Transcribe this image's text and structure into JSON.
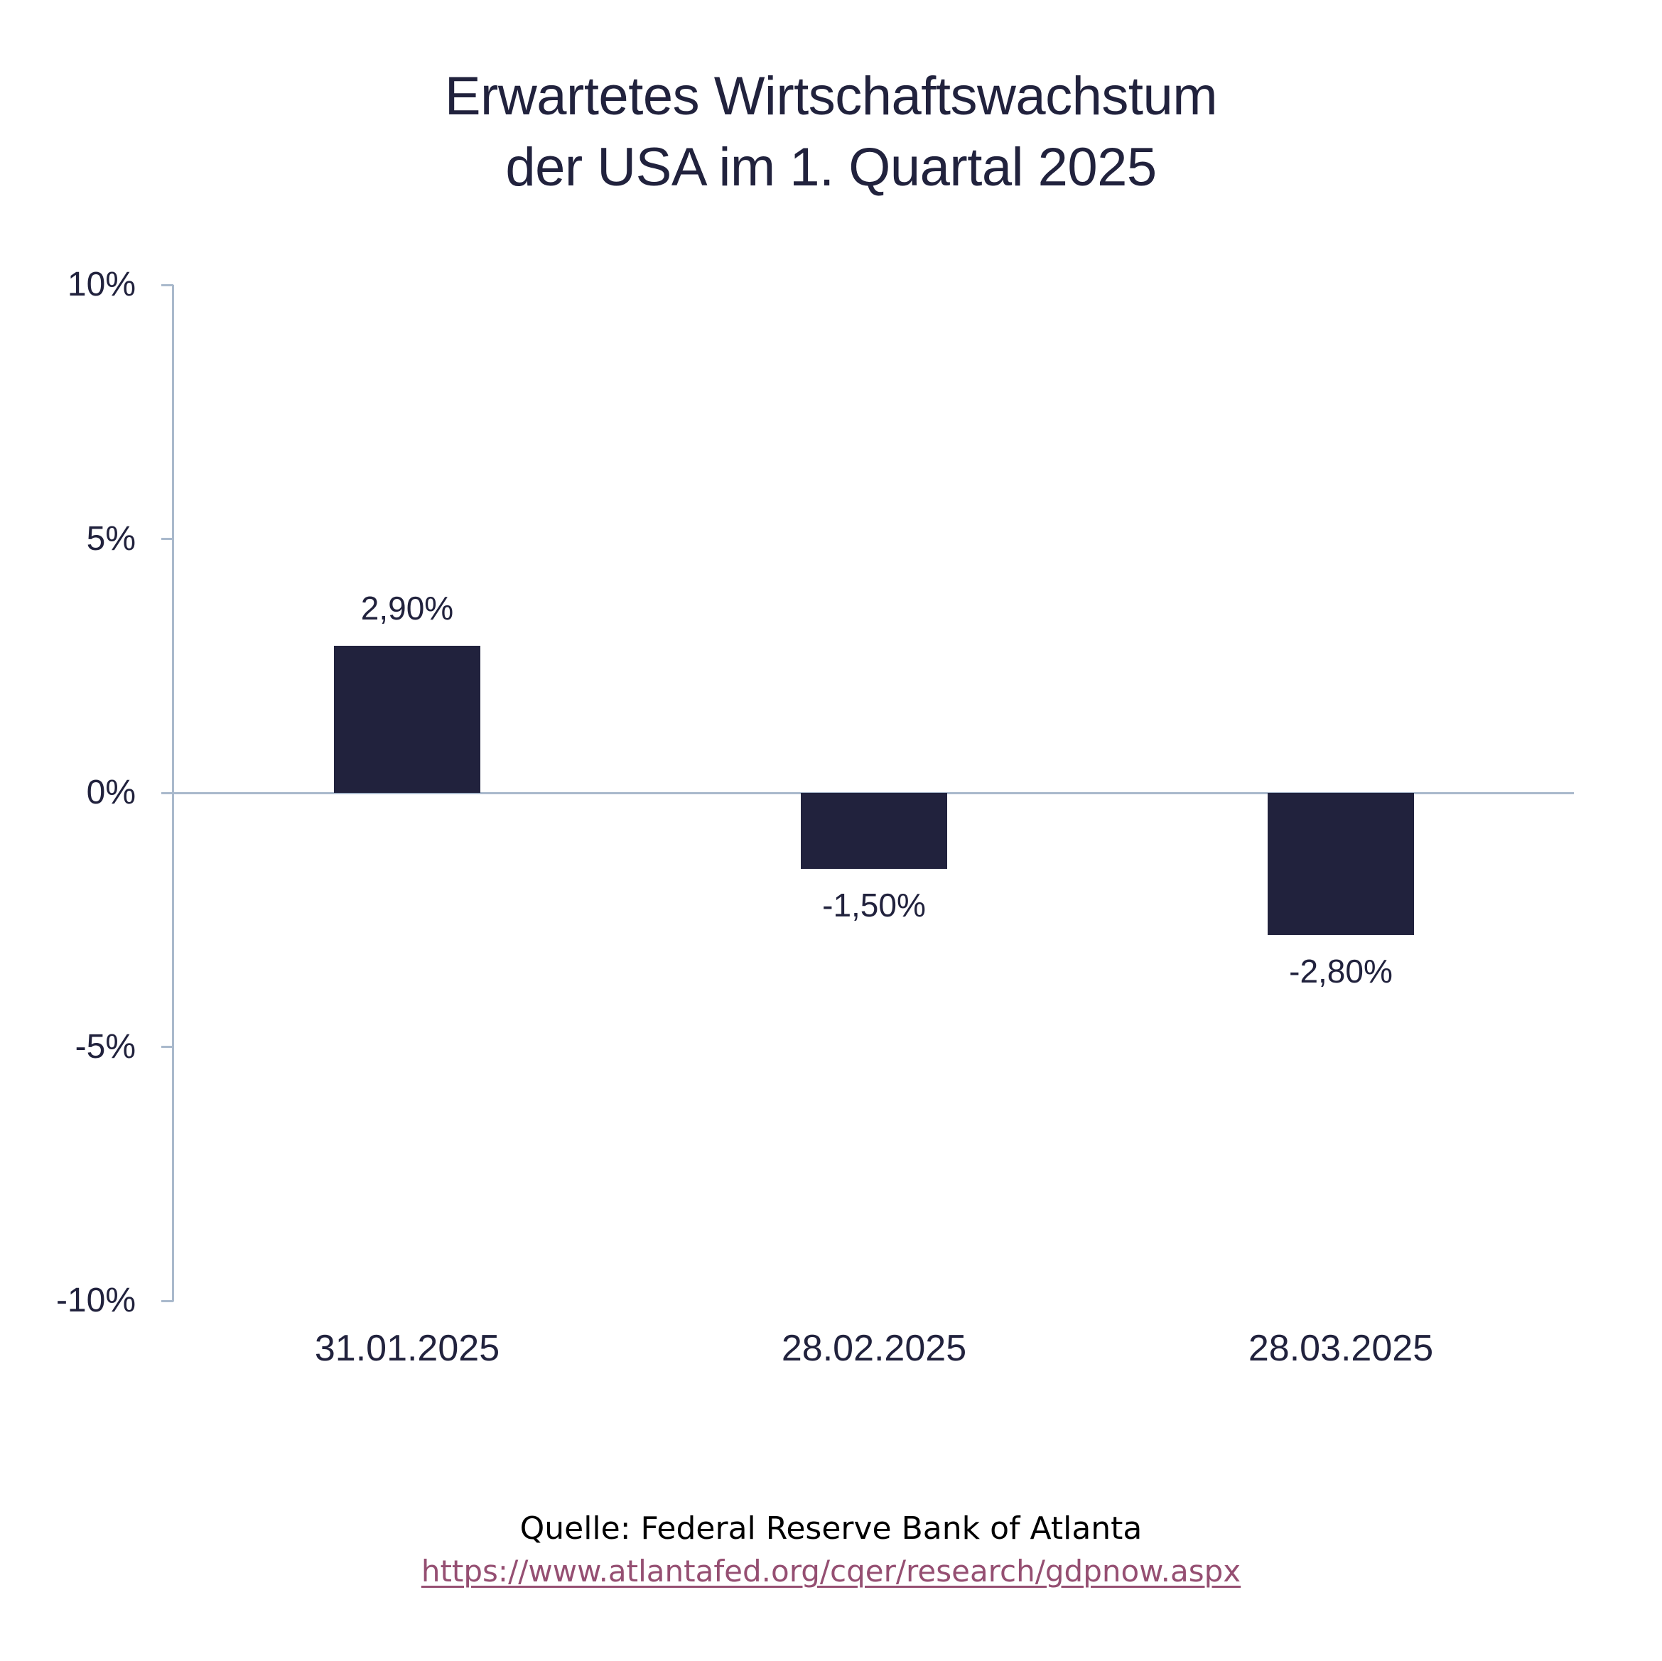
{
  "chart": {
    "title_line1": "Erwartetes Wirtschaftswachstum",
    "title_line2": "der USA im 1. Quartal 2025",
    "y_ticks": [
      {
        "value": 10,
        "label": "10%"
      },
      {
        "value": 5,
        "label": "5%"
      },
      {
        "value": 0,
        "label": "0%"
      },
      {
        "value": -5,
        "label": "-5%"
      },
      {
        "value": -10,
        "label": "-10%"
      }
    ],
    "bars": [
      {
        "category": "31.01.2025",
        "value": 2.9,
        "label": "2,90%"
      },
      {
        "category": "28.02.2025",
        "value": -1.5,
        "label": "-1,50%"
      },
      {
        "category": "28.03.2025",
        "value": -2.8,
        "label": "-2,80%"
      }
    ],
    "colors": {
      "bar": "#21223D",
      "axis": "#A9B9CC",
      "text": "#21223D",
      "link": "#954F72"
    }
  },
  "footer": {
    "source": "Quelle: Federal Reserve Bank of Atlanta",
    "link": "https://www.atlantafed.org/cqer/research/gdpnow.aspx"
  },
  "chart_data": {
    "type": "bar",
    "title": "Erwartetes Wirtschaftswachstum der USA im 1. Quartal 2025",
    "categories": [
      "31.01.2025",
      "28.02.2025",
      "28.03.2025"
    ],
    "values": [
      2.9,
      -1.5,
      -2.8
    ],
    "data_labels": [
      "2,90%",
      "-1,50%",
      "-2,80%"
    ],
    "xlabel": "",
    "ylabel": "",
    "ylim": [
      -10,
      10
    ],
    "yticks": [
      "10%",
      "5%",
      "0%",
      "-5%",
      "-10%"
    ],
    "grid": false,
    "legend": null,
    "source": "Quelle: Federal Reserve Bank of Atlanta",
    "source_url": "https://www.atlantafed.org/cqer/research/gdpnow.aspx"
  }
}
